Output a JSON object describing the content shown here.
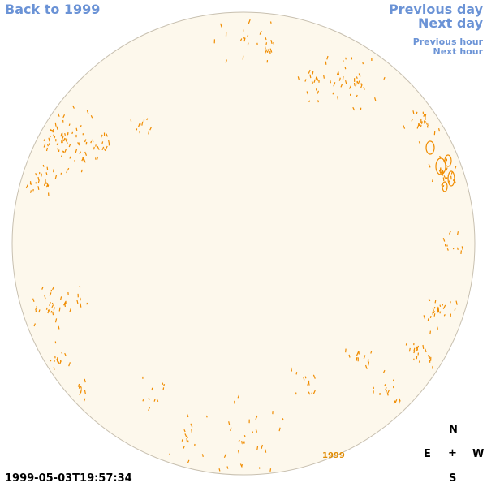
{
  "nav": {
    "back_label": "Back to 1999",
    "prev_day_label": "Previous day",
    "next_day_label": "Next day",
    "prev_hour_label": "Previous hour",
    "next_hour_label": "Next hour"
  },
  "map": {
    "year_link": "1999",
    "timestamp": "1999-05-03T19:57:34"
  },
  "compass": {
    "north": "N",
    "east": "E",
    "center": "+",
    "west": "W",
    "south": "S"
  },
  "colors": {
    "disc_fill": "#fdf8ec",
    "contour": "#f08c00",
    "link": "#6b93d6",
    "rim": "#c8c0b0"
  }
}
